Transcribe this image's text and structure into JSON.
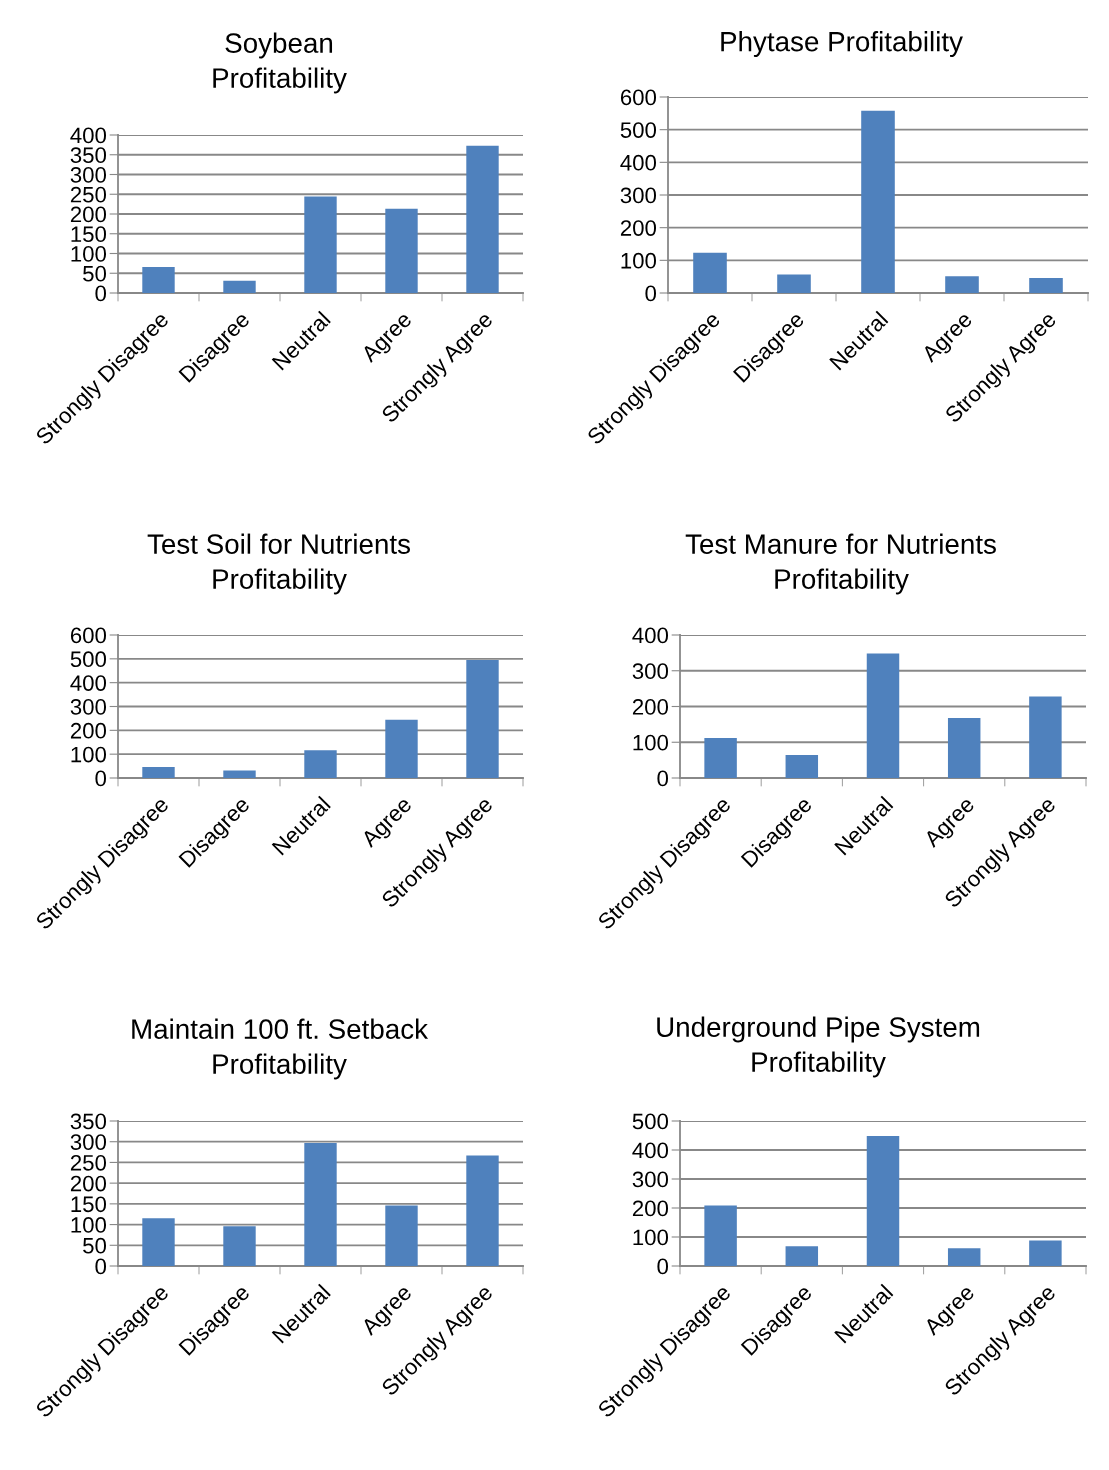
{
  "chart_data": [
    {
      "type": "bar",
      "title": "Soybean\nProfitability",
      "categories": [
        "Strongly Disagree",
        "Disagree",
        "Neutral",
        "Agree",
        "Strongly Agree"
      ],
      "values": [
        66,
        31,
        244,
        213,
        373
      ],
      "color": "#4f81bd",
      "ylim": [
        0,
        400
      ],
      "yticks": [
        0,
        50,
        100,
        150,
        200,
        250,
        300,
        350,
        400
      ],
      "grid": "y",
      "legend": false
    },
    {
      "type": "bar",
      "title": "Phytase Profitability",
      "categories": [
        "Strongly Disagree",
        "Disagree",
        "Neutral",
        "Agree",
        "Strongly Agree"
      ],
      "values": [
        123,
        57,
        558,
        51,
        46
      ],
      "color": "#4f81bd",
      "ylim": [
        0,
        600
      ],
      "yticks": [
        0,
        100,
        200,
        300,
        400,
        500,
        600
      ],
      "grid": "y",
      "legend": false
    },
    {
      "type": "bar",
      "title": "Test Soil for Nutrients\nProfitability",
      "categories": [
        "Strongly Disagree",
        "Disagree",
        "Neutral",
        "Agree",
        "Strongly Agree"
      ],
      "values": [
        46,
        31,
        116,
        244,
        495
      ],
      "color": "#4f81bd",
      "ylim": [
        0,
        600
      ],
      "yticks": [
        0,
        100,
        200,
        300,
        400,
        500,
        600
      ],
      "grid": "y",
      "legend": false
    },
    {
      "type": "bar",
      "title": "Test Manure for Nutrients\nProfitability",
      "categories": [
        "Strongly Disagree",
        "Disagree",
        "Neutral",
        "Agree",
        "Strongly Agree"
      ],
      "values": [
        112,
        64,
        348,
        168,
        228
      ],
      "color": "#4f81bd",
      "ylim": [
        0,
        400
      ],
      "yticks": [
        0,
        100,
        200,
        300,
        400
      ],
      "grid": "y",
      "legend": false
    },
    {
      "type": "bar",
      "title": "Maintain 100 ft. Setback\nProfitability",
      "categories": [
        "Strongly Disagree",
        "Disagree",
        "Neutral",
        "Agree",
        "Strongly Agree"
      ],
      "values": [
        115,
        96,
        297,
        146,
        267
      ],
      "color": "#4f81bd",
      "ylim": [
        0,
        350
      ],
      "yticks": [
        0,
        50,
        100,
        150,
        200,
        250,
        300,
        350
      ],
      "grid": "y",
      "legend": false
    },
    {
      "type": "bar",
      "title": "Underground Pipe System\nProfitability",
      "categories": [
        "Strongly Disagree",
        "Disagree",
        "Neutral",
        "Agree",
        "Strongly Agree"
      ],
      "values": [
        209,
        68,
        448,
        61,
        88
      ],
      "color": "#4f81bd",
      "ylim": [
        0,
        500
      ],
      "yticks": [
        0,
        100,
        200,
        300,
        400,
        500
      ],
      "grid": "y",
      "legend": false
    }
  ]
}
